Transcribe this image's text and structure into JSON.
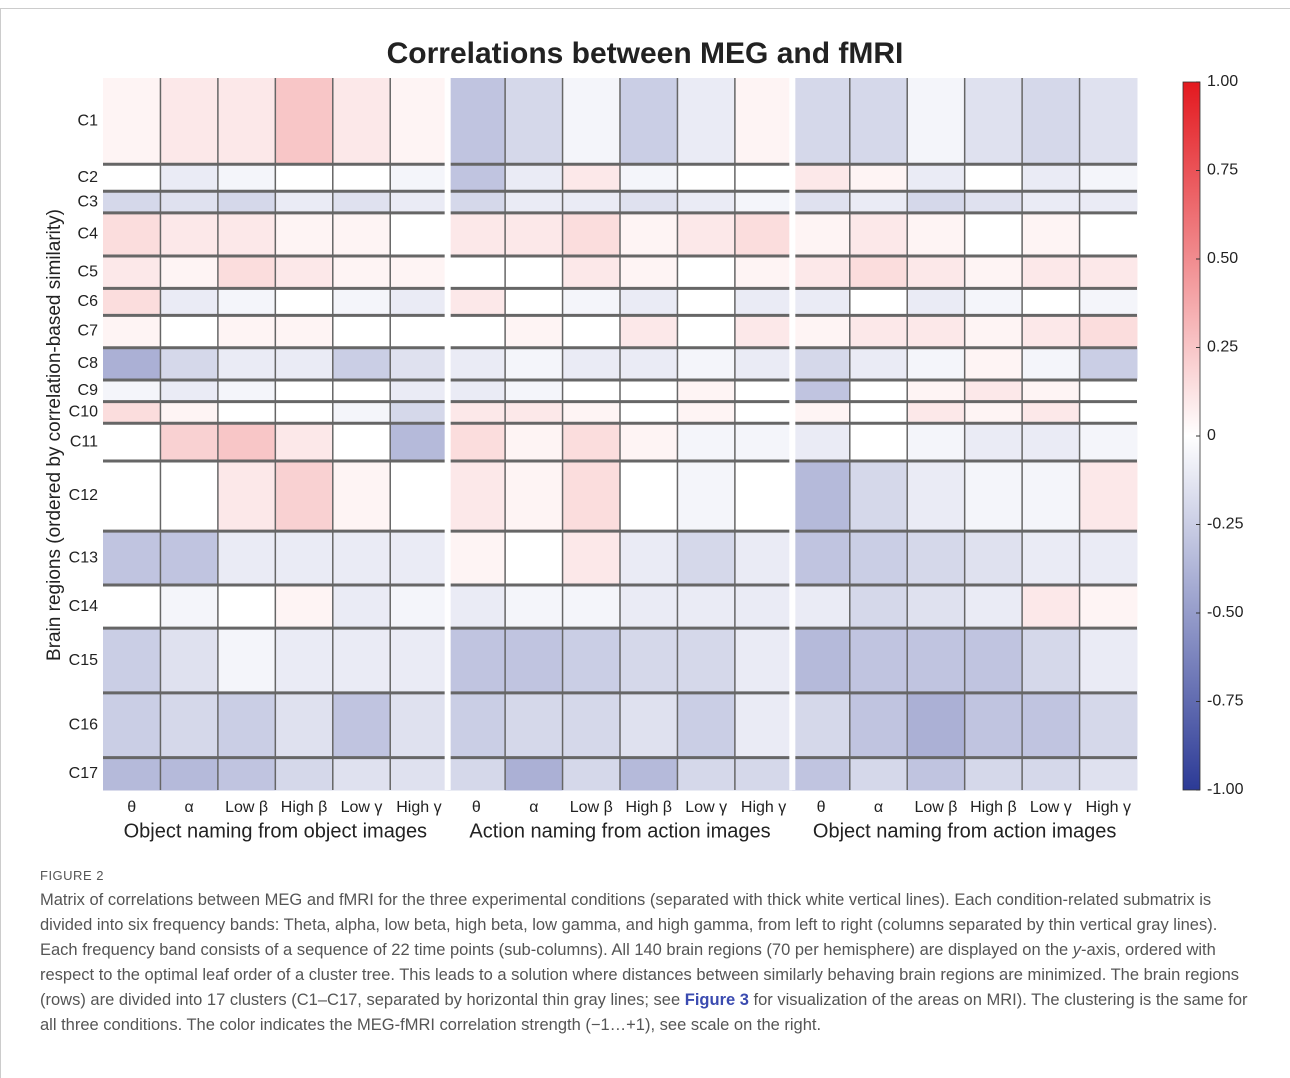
{
  "chart_data": {
    "type": "heatmap",
    "title": "Correlations between MEG and fMRI",
    "ylabel": "Brain regions (ordered by correlation-based similarity)",
    "rows": [
      "C1",
      "C2",
      "C3",
      "C4",
      "C5",
      "C6",
      "C7",
      "C8",
      "C9",
      "C10",
      "C11",
      "C12",
      "C13",
      "C14",
      "C15",
      "C16",
      "C17"
    ],
    "conditions": [
      "Object naming from object images",
      "Action naming from action images",
      "Object naming from action images"
    ],
    "bands": [
      "θ",
      "α",
      "Low β",
      "High β",
      "Low γ",
      "High γ"
    ],
    "values": [
      [
        0.05,
        0.1,
        0.1,
        0.25,
        0.1,
        0.05,
        -0.3,
        -0.2,
        -0.05,
        -0.25,
        -0.1,
        0.05,
        -0.2,
        -0.2,
        -0.05,
        -0.15,
        -0.2,
        -0.15
      ],
      [
        0,
        -0.1,
        -0.05,
        0,
        0,
        -0.05,
        -0.3,
        -0.1,
        0.1,
        -0.05,
        0,
        0,
        0.1,
        0.05,
        -0.1,
        0,
        -0.1,
        -0.05
      ],
      [
        -0.2,
        -0.15,
        -0.2,
        -0.1,
        -0.15,
        -0.1,
        -0.2,
        -0.1,
        -0.1,
        -0.15,
        -0.1,
        -0.05,
        -0.15,
        -0.1,
        -0.2,
        -0.15,
        -0.1,
        -0.1
      ],
      [
        0.15,
        0.1,
        0.1,
        0.05,
        0.05,
        0,
        0.1,
        0.1,
        0.15,
        0.05,
        0.1,
        0.15,
        0.05,
        0.1,
        0.05,
        0,
        0.05,
        0
      ],
      [
        0.1,
        0.05,
        0.15,
        0.1,
        0.05,
        0.05,
        0,
        0,
        0.1,
        0.05,
        0,
        0.05,
        0.1,
        0.15,
        0.1,
        0.05,
        0.1,
        0.1
      ],
      [
        0.15,
        -0.1,
        -0.05,
        0,
        -0.05,
        -0.1,
        0.1,
        0,
        -0.05,
        -0.1,
        0,
        -0.1,
        -0.1,
        0,
        -0.1,
        -0.05,
        0,
        -0.05
      ],
      [
        0.05,
        0,
        0.05,
        0.05,
        0,
        0,
        0,
        0.05,
        0,
        0.1,
        0,
        0.1,
        0.05,
        0.1,
        0.1,
        0.05,
        0.1,
        0.15
      ],
      [
        -0.4,
        -0.2,
        -0.1,
        -0.1,
        -0.25,
        -0.15,
        -0.1,
        -0.05,
        -0.1,
        -0.1,
        -0.05,
        -0.1,
        -0.2,
        -0.1,
        -0.05,
        0.05,
        -0.05,
        -0.25
      ],
      [
        -0.05,
        -0.1,
        -0.05,
        0,
        0,
        -0.1,
        -0.1,
        -0.05,
        0,
        0,
        0.05,
        0,
        -0.3,
        0,
        0.05,
        0.1,
        0.05,
        0
      ],
      [
        0.15,
        0.05,
        0,
        0,
        -0.05,
        -0.2,
        0.1,
        0.1,
        0.05,
        0,
        0.05,
        0,
        0.05,
        0,
        0.1,
        0.05,
        0.1,
        0
      ],
      [
        0,
        0.2,
        0.25,
        0.1,
        0,
        -0.35,
        0.15,
        0.05,
        0.15,
        0.05,
        -0.05,
        -0.05,
        -0.1,
        0,
        -0.05,
        -0.1,
        -0.1,
        -0.05
      ],
      [
        0,
        0,
        0.1,
        0.2,
        0.05,
        0,
        0.1,
        0.05,
        0.15,
        0,
        -0.05,
        0,
        -0.35,
        -0.2,
        -0.1,
        -0.05,
        -0.05,
        0.1
      ],
      [
        -0.3,
        -0.3,
        -0.1,
        -0.1,
        -0.1,
        -0.1,
        0.05,
        0,
        0.1,
        -0.1,
        -0.2,
        -0.1,
        -0.3,
        -0.25,
        -0.2,
        -0.15,
        -0.1,
        -0.1
      ],
      [
        0,
        -0.05,
        0,
        0.05,
        -0.1,
        -0.05,
        -0.1,
        -0.05,
        -0.05,
        -0.1,
        -0.1,
        -0.1,
        -0.1,
        -0.2,
        -0.15,
        -0.1,
        0.1,
        0.05
      ],
      [
        -0.25,
        -0.15,
        -0.05,
        -0.1,
        -0.1,
        -0.1,
        -0.3,
        -0.3,
        -0.25,
        -0.2,
        -0.2,
        -0.1,
        -0.35,
        -0.3,
        -0.3,
        -0.3,
        -0.2,
        -0.1
      ],
      [
        -0.25,
        -0.2,
        -0.25,
        -0.15,
        -0.3,
        -0.15,
        -0.25,
        -0.2,
        -0.2,
        -0.15,
        -0.25,
        -0.1,
        -0.2,
        -0.3,
        -0.4,
        -0.3,
        -0.3,
        -0.2
      ],
      [
        -0.35,
        -0.35,
        -0.3,
        -0.2,
        -0.15,
        -0.15,
        -0.2,
        -0.4,
        -0.2,
        -0.35,
        -0.2,
        -0.2,
        -0.3,
        -0.2,
        -0.3,
        -0.2,
        -0.2,
        -0.15
      ]
    ],
    "colormap": {
      "low": "#2c3a96",
      "mid": "#ffffff",
      "high": "#e3191f"
    },
    "clim": [
      -1,
      1
    ],
    "cticks": [
      {
        "value": -1,
        "label": "-1.00"
      },
      -0.75,
      {
        "value": -0.5,
        "label": "-0.50"
      },
      -0.25,
      0,
      0.25,
      {
        "value": 0.5,
        "label": "0.50"
      },
      0.75,
      {
        "value": 1,
        "label": "1.00"
      }
    ]
  },
  "figure_label": "FIGURE 2",
  "caption": [
    "Matrix of correlations between MEG and fMRI for the three experimental conditions (separated with thick white vertical lines). Each condition-related submatrix is divided into six frequency bands: Theta, alpha, low beta, high beta, low gamma, and high gamma, from left to right (columns separated by thin vertical gray lines). Each frequency band consists of a sequence of 22 time points (sub-columns). All 140 brain regions (70 per hemisphere) are displayed on the ",
    "y",
    "-axis, ordered with respect to the optimal leaf order of a cluster tree. This leads to a solution where distances between similarly behaving brain regions are minimized. The brain regions (rows) are divided into 17 clusters (C1–C17, separated by horizontal thin gray lines; see ",
    "Figure 3",
    " for visualization of the areas on MRI). The clustering is the same for all three conditions. The color indicates the MEG-fMRI correlation strength (−1…+1), see scale on the right."
  ]
}
